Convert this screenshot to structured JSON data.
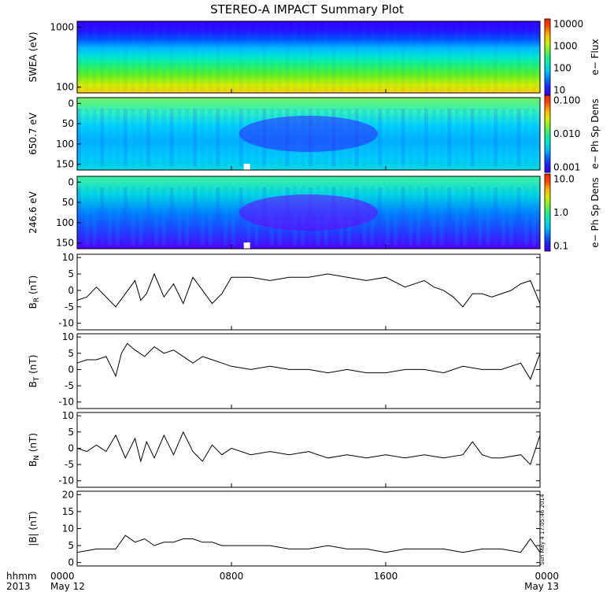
{
  "title": "STEREO-A IMPACT Summary Plot",
  "footer": {
    "unit_label": "hhmm",
    "year_label": "2013",
    "ticks": [
      {
        "time": "0000",
        "date": "May 12"
      },
      {
        "time": "0800",
        "date": ""
      },
      {
        "time": "1600",
        "date": ""
      },
      {
        "time": "0000",
        "date": "May 13"
      }
    ]
  },
  "timestamp": "Sun May  4 17:05:46 2014",
  "chart_data": [
    {
      "type": "heatmap",
      "name": "swea",
      "ylabel": "SWEA (eV)",
      "ylog": true,
      "ylim": [
        100,
        2000
      ],
      "yticks": [
        "1000",
        "100"
      ],
      "colorbar": {
        "label": "e− Flux",
        "ticks": [
          "10000",
          "1000",
          "100",
          "10"
        ],
        "range": [
          10,
          20000
        ],
        "scale": "log"
      },
      "colors": {
        "high": "#ff2a00",
        "low": "#2a00ff"
      }
    },
    {
      "type": "heatmap",
      "name": "pad-650",
      "ylabel": "650.7 eV",
      "ylim": [
        0,
        180
      ],
      "yticks": [
        "0",
        "50",
        "100",
        "150"
      ],
      "colorbar": {
        "label": "e− Ph Sp Dens",
        "ticks": [
          "0.100",
          "0.010",
          "0.001"
        ],
        "range": [
          0.001,
          0.1
        ],
        "scale": "log"
      }
    },
    {
      "type": "heatmap",
      "name": "pad-246",
      "ylabel": "246.6 eV",
      "ylim": [
        0,
        180
      ],
      "yticks": [
        "0",
        "50",
        "100",
        "150"
      ],
      "colorbar": {
        "label": "e− Ph Sp Dens",
        "ticks": [
          "10.0",
          "1.0",
          "0.1"
        ],
        "range": [
          0.1,
          10
        ],
        "scale": "log"
      }
    },
    {
      "type": "line",
      "name": "br",
      "ylabel": "B",
      "ysub": "R",
      "yunit": " (nT)",
      "ylim": [
        -12,
        11
      ],
      "yticks": [
        "10",
        "5",
        "0",
        "-5",
        "-10"
      ],
      "x": [
        0,
        0.5,
        1,
        1.5,
        2,
        2.5,
        3,
        3.3,
        3.6,
        4,
        4.5,
        5,
        5.5,
        6,
        6.5,
        7,
        7.5,
        8,
        9,
        10,
        11,
        12,
        13,
        14,
        15,
        16,
        17,
        18,
        18.5,
        19,
        19.5,
        20,
        20.5,
        21,
        21.5,
        22,
        22.5,
        23,
        23.5,
        24
      ],
      "y": [
        -3,
        -2,
        1,
        -2,
        -5,
        -1,
        3,
        -3,
        -1,
        5,
        -2,
        2,
        -4,
        4,
        0,
        -4,
        -1,
        4,
        4,
        3,
        4,
        4,
        5,
        4,
        3,
        4,
        1,
        3,
        1,
        0,
        -2,
        -5,
        -1,
        -1,
        -2,
        -1,
        0,
        2,
        3,
        -4
      ]
    },
    {
      "type": "line",
      "name": "bt",
      "ylabel": "B",
      "ysub": "T",
      "yunit": " (nT)",
      "ylim": [
        -12,
        11
      ],
      "yticks": [
        "10",
        "5",
        "0",
        "-5",
        "-10"
      ],
      "x": [
        0,
        0.5,
        1,
        1.5,
        2,
        2.3,
        2.6,
        3,
        3.5,
        4,
        4.5,
        5,
        5.5,
        6,
        6.5,
        7,
        7.5,
        8,
        9,
        10,
        11,
        12,
        13,
        14,
        15,
        16,
        17,
        18,
        19,
        20,
        21,
        22,
        23,
        23.5,
        24
      ],
      "y": [
        2,
        3,
        3,
        4,
        -2,
        5,
        8,
        6,
        4,
        7,
        5,
        6,
        4,
        2,
        4,
        3,
        2,
        1,
        0,
        1,
        0,
        0,
        -1,
        0,
        -1,
        -1,
        0,
        0,
        -1,
        1,
        0,
        0,
        2,
        -3,
        5
      ]
    },
    {
      "type": "line",
      "name": "bn",
      "ylabel": "B",
      "ysub": "N",
      "yunit": " (nT)",
      "ylim": [
        -12,
        11
      ],
      "yticks": [
        "10",
        "5",
        "0",
        "-5",
        "-10"
      ],
      "x": [
        0,
        0.5,
        1,
        1.5,
        2,
        2.5,
        3,
        3.3,
        3.6,
        4,
        4.5,
        5,
        5.5,
        6,
        6.5,
        7,
        7.5,
        8,
        9,
        10,
        11,
        12,
        13,
        14,
        15,
        16,
        17,
        18,
        19,
        20,
        20.5,
        21,
        21.5,
        22,
        23,
        23.5,
        24
      ],
      "y": [
        0,
        -1,
        1,
        -1,
        4,
        -3,
        3,
        -4,
        2,
        -3,
        4,
        -2,
        5,
        -1,
        -4,
        1,
        -2,
        0,
        -2,
        -1,
        -2,
        -1,
        -3,
        -2,
        -3,
        -2,
        -3,
        -2,
        -3,
        -2,
        2,
        -2,
        -3,
        -3,
        -2,
        -5,
        4
      ]
    },
    {
      "type": "line",
      "name": "bmag",
      "ylabel": "|B|",
      "ysub": "",
      "yunit": " (nT)",
      "ylim": [
        -1,
        21
      ],
      "yticks": [
        "20",
        "15",
        "10",
        "5",
        "0"
      ],
      "x": [
        0,
        1,
        2,
        2.5,
        3,
        3.5,
        4,
        4.5,
        5,
        5.5,
        6,
        6.5,
        7,
        7.5,
        8,
        9,
        10,
        11,
        12,
        13,
        14,
        15,
        16,
        17,
        18,
        19,
        20,
        21,
        22,
        23,
        23.5,
        24
      ],
      "y": [
        3,
        4,
        4,
        8,
        6,
        7,
        5,
        6,
        6,
        7,
        7,
        6,
        6,
        5,
        5,
        5,
        5,
        4,
        4,
        5,
        4,
        4,
        3,
        4,
        4,
        4,
        3,
        4,
        4,
        3,
        7,
        3
      ]
    }
  ]
}
